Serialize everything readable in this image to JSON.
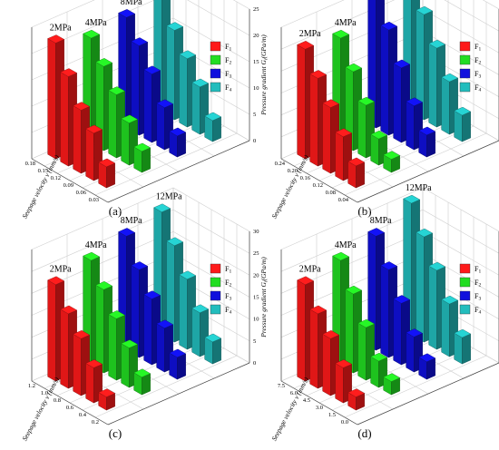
{
  "chart_data": [
    {
      "panel": "(a)",
      "type": "bar",
      "pressures": [
        "2MPa",
        "4MPa",
        "8MPa",
        "12MPa"
      ],
      "series": [
        {
          "name": "F1",
          "color": "#ff1a1a",
          "values": [
            22,
            17,
            12,
            9,
            4
          ]
        },
        {
          "name": "F2",
          "color": "#22dd22",
          "values": [
            20,
            16,
            12,
            8,
            4
          ]
        },
        {
          "name": "F3",
          "color": "#1010dd",
          "values": [
            21,
            17,
            13,
            8,
            4
          ]
        },
        {
          "name": "F4",
          "color": "#22bdbd",
          "values": [
            22,
            17,
            13,
            9,
            4
          ]
        }
      ],
      "x_ticks": [
        "0.18",
        "0.15",
        "0.12",
        "0.09",
        "0.06",
        "0.03"
      ],
      "xlabel": "Seepage velocity v (mm/s)",
      "z_ticks": [
        "0",
        "5",
        "10",
        "15",
        "20",
        "25"
      ],
      "zlabel": "Pressure gradient G",
      "zlabel_sub": "i",
      "zlabel_unit": "(GPa/m)",
      "zlim": [
        0,
        25
      ],
      "legend_position": "top-right"
    },
    {
      "panel": "(b)",
      "type": "bar",
      "pressures": [
        "2MPa",
        "4MPa",
        "8MPa",
        "12MPa"
      ],
      "series": [
        {
          "name": "F1",
          "color": "#ff1a1a",
          "values": [
            25,
            20,
            15,
            10,
            5
          ]
        },
        {
          "name": "F2",
          "color": "#22dd22",
          "values": [
            24,
            18,
            12,
            6,
            3
          ]
        },
        {
          "name": "F3",
          "color": "#1010dd",
          "values": [
            30,
            24,
            17,
            10,
            5
          ]
        },
        {
          "name": "F4",
          "color": "#22bdbd",
          "values": [
            30,
            24,
            18,
            12,
            6
          ]
        }
      ],
      "x_ticks": [
        "0.24",
        "0.20",
        "0.16",
        "0.12",
        "0.08",
        "0.04"
      ],
      "xlabel": "Seepage velocity v (mm/s)",
      "z_ticks": [
        "0",
        "5",
        "10",
        "15",
        "20",
        "25",
        "30"
      ],
      "zlabel": "Pressure gradient G",
      "zlabel_sub": "i",
      "zlabel_unit": "(GPa/m)",
      "zlim": [
        0,
        30
      ],
      "legend_position": "top-right"
    },
    {
      "panel": "(c)",
      "type": "bar",
      "pressures": [
        "2MPa",
        "4MPa",
        "8MPa",
        "12MPa"
      ],
      "series": [
        {
          "name": "F1",
          "color": "#ff1a1a",
          "values": [
            22,
            17,
            13,
            8,
            3
          ]
        },
        {
          "name": "F2",
          "color": "#22dd22",
          "values": [
            24,
            19,
            14,
            9,
            4
          ]
        },
        {
          "name": "F3",
          "color": "#1010dd",
          "values": [
            26,
            20,
            15,
            10,
            5
          ]
        },
        {
          "name": "F4",
          "color": "#22bdbd",
          "values": [
            28,
            22,
            16,
            10,
            5
          ]
        }
      ],
      "x_ticks": [
        "1.2",
        "1.0",
        "0.8",
        "0.6",
        "0.4",
        "0.2"
      ],
      "xlabel": "Seepage velocity v (mm/s)",
      "z_ticks": [
        "0",
        "5",
        "10",
        "15",
        "20",
        "25",
        "30"
      ],
      "zlabel": "Pressure gradient G",
      "zlabel_sub": "i",
      "zlabel_unit": "(GPa/m)",
      "zlim": [
        0,
        30
      ],
      "legend_position": "top-right"
    },
    {
      "panel": "(d)",
      "type": "bar",
      "pressures": [
        "2MPa",
        "4MPa",
        "8MPa",
        "12MPa"
      ],
      "series": [
        {
          "name": "F1",
          "color": "#ff1a1a",
          "values": [
            22,
            17,
            13,
            8,
            3
          ]
        },
        {
          "name": "F2",
          "color": "#22dd22",
          "values": [
            24,
            18,
            12,
            6,
            3
          ]
        },
        {
          "name": "F3",
          "color": "#1010dd",
          "values": [
            26,
            20,
            14,
            8,
            4
          ]
        },
        {
          "name": "F4",
          "color": "#22bdbd",
          "values": [
            30,
            24,
            18,
            12,
            6
          ]
        }
      ],
      "x_ticks": [
        "7.5",
        "6.0",
        "4.5",
        "3.0",
        "1.5",
        "0.0"
      ],
      "xlabel": "Seepage velocity v (mm/s)",
      "z_ticks": [
        "0",
        "5",
        "10",
        "15",
        "20",
        "25",
        "30"
      ],
      "zlabel": "Pressure gradient G",
      "zlabel_sub": "i",
      "zlabel_unit": "(GPa/m)",
      "zlim": [
        0,
        30
      ],
      "legend_position": "top-right"
    }
  ],
  "legend": {
    "labels": [
      "F",
      "F",
      "F",
      "F"
    ],
    "subs": [
      "1",
      "2",
      "3",
      "4"
    ]
  }
}
